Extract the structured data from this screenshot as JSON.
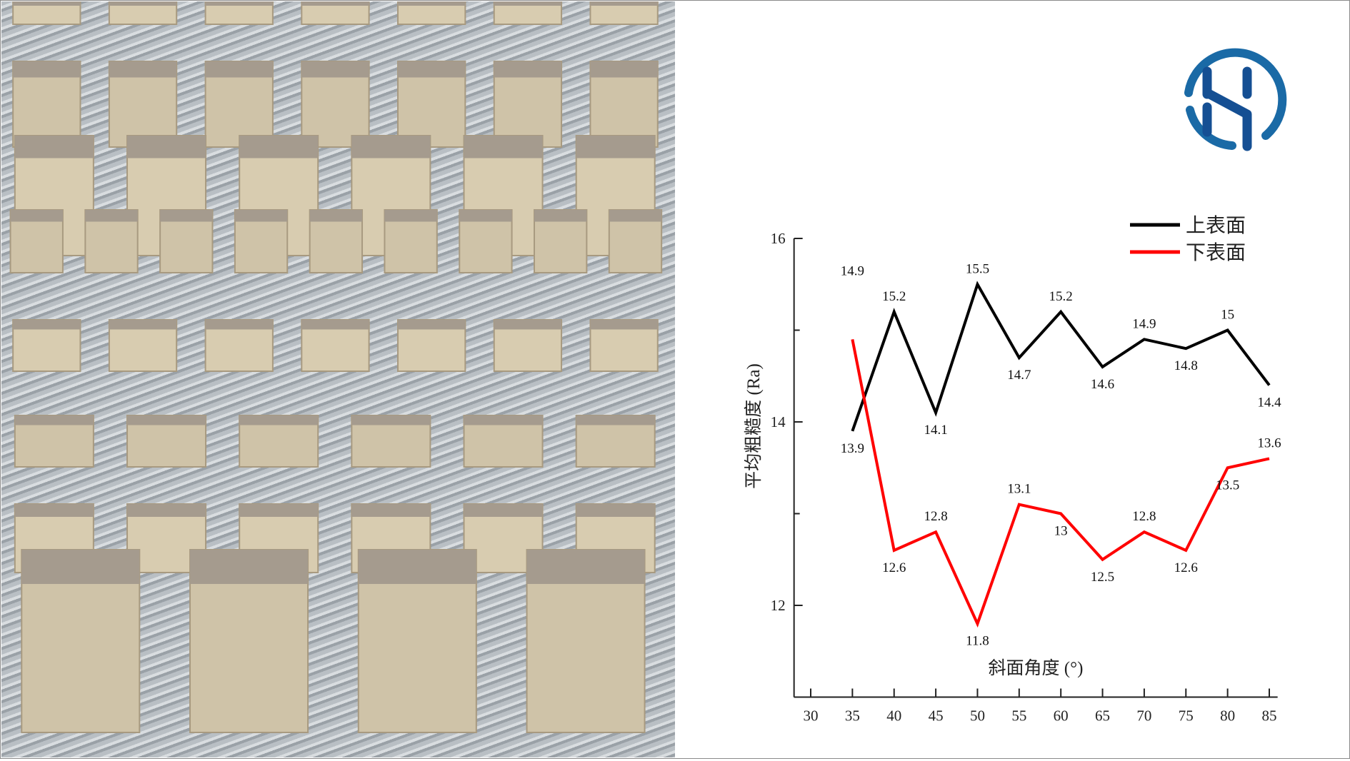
{
  "photo": {
    "description_label": ""
  },
  "logo": {
    "colors": {
      "ring": "#1a6aa6",
      "letter": "#154f93"
    }
  },
  "chart_data": {
    "type": "line",
    "xlabel": "斜面角度 (°)",
    "ylabel": "平均粗糙度 (Ra)",
    "x": [
      35,
      40,
      45,
      50,
      55,
      60,
      65,
      70,
      75,
      80,
      85
    ],
    "xticks": [
      30,
      35,
      40,
      45,
      50,
      55,
      60,
      65,
      70,
      75,
      80,
      85
    ],
    "yticks": [
      12,
      14,
      16
    ],
    "xlim": [
      28,
      86
    ],
    "ylim": [
      11,
      16
    ],
    "legend_position": "top-right",
    "grid": false,
    "series": [
      {
        "name": "上表面",
        "color": "#000000",
        "values": [
          13.9,
          15.2,
          14.1,
          15.5,
          14.7,
          15.2,
          14.6,
          14.9,
          14.8,
          15,
          14.4
        ],
        "labels": [
          "13.9",
          "15.2",
          "14.1",
          "15.5",
          "14.7",
          "15.2",
          "14.6",
          "14.9",
          "14.8",
          "15",
          "14.4"
        ]
      },
      {
        "name": "下表面",
        "color": "#ff0000",
        "values": [
          14.9,
          12.6,
          12.8,
          11.8,
          13.1,
          13,
          12.5,
          12.8,
          12.6,
          13.5,
          13.6
        ],
        "labels": [
          "14.9",
          "12.6",
          "12.8",
          "11.8",
          "13.1",
          "13",
          "12.5",
          "12.8",
          "12.6",
          "13.5",
          "13.6"
        ]
      }
    ]
  }
}
